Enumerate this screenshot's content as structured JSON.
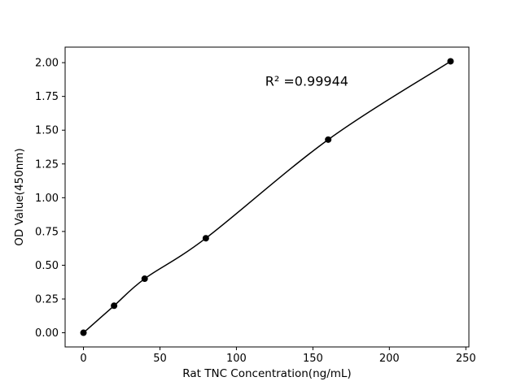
{
  "figure": {
    "background": "#ffffff"
  },
  "chart_data": {
    "type": "line",
    "title": "",
    "xlabel": "Rat TNC Concentration(ng/mL)",
    "ylabel": "OD Value(450nm)",
    "annotation": {
      "text": "R² =0.99944",
      "x": 146,
      "y": 1.86
    },
    "series": [
      {
        "name": "standard-curve",
        "x": [
          0,
          20,
          40,
          80,
          160,
          240
        ],
        "y": [
          0.0,
          0.2,
          0.4,
          0.7,
          1.43,
          2.01
        ],
        "marker": "circle",
        "color": "#000000"
      }
    ],
    "xlim": [
      -12,
      252
    ],
    "ylim": [
      -0.105,
      2.115
    ],
    "xticks": [
      0,
      50,
      100,
      150,
      200,
      250
    ],
    "xtick_labels": [
      "0",
      "50",
      "100",
      "150",
      "200",
      "250"
    ],
    "yticks": [
      0,
      0.25,
      0.5,
      0.75,
      1.0,
      1.25,
      1.5,
      1.75,
      2.0
    ],
    "ytick_labels": [
      "0.00",
      "0.25",
      "0.50",
      "0.75",
      "1.00",
      "1.25",
      "1.50",
      "1.75",
      "2.00"
    ],
    "grid": false,
    "legend": null,
    "line_color": "#000000",
    "marker_color": "#000000",
    "frame_color": "#000000"
  }
}
